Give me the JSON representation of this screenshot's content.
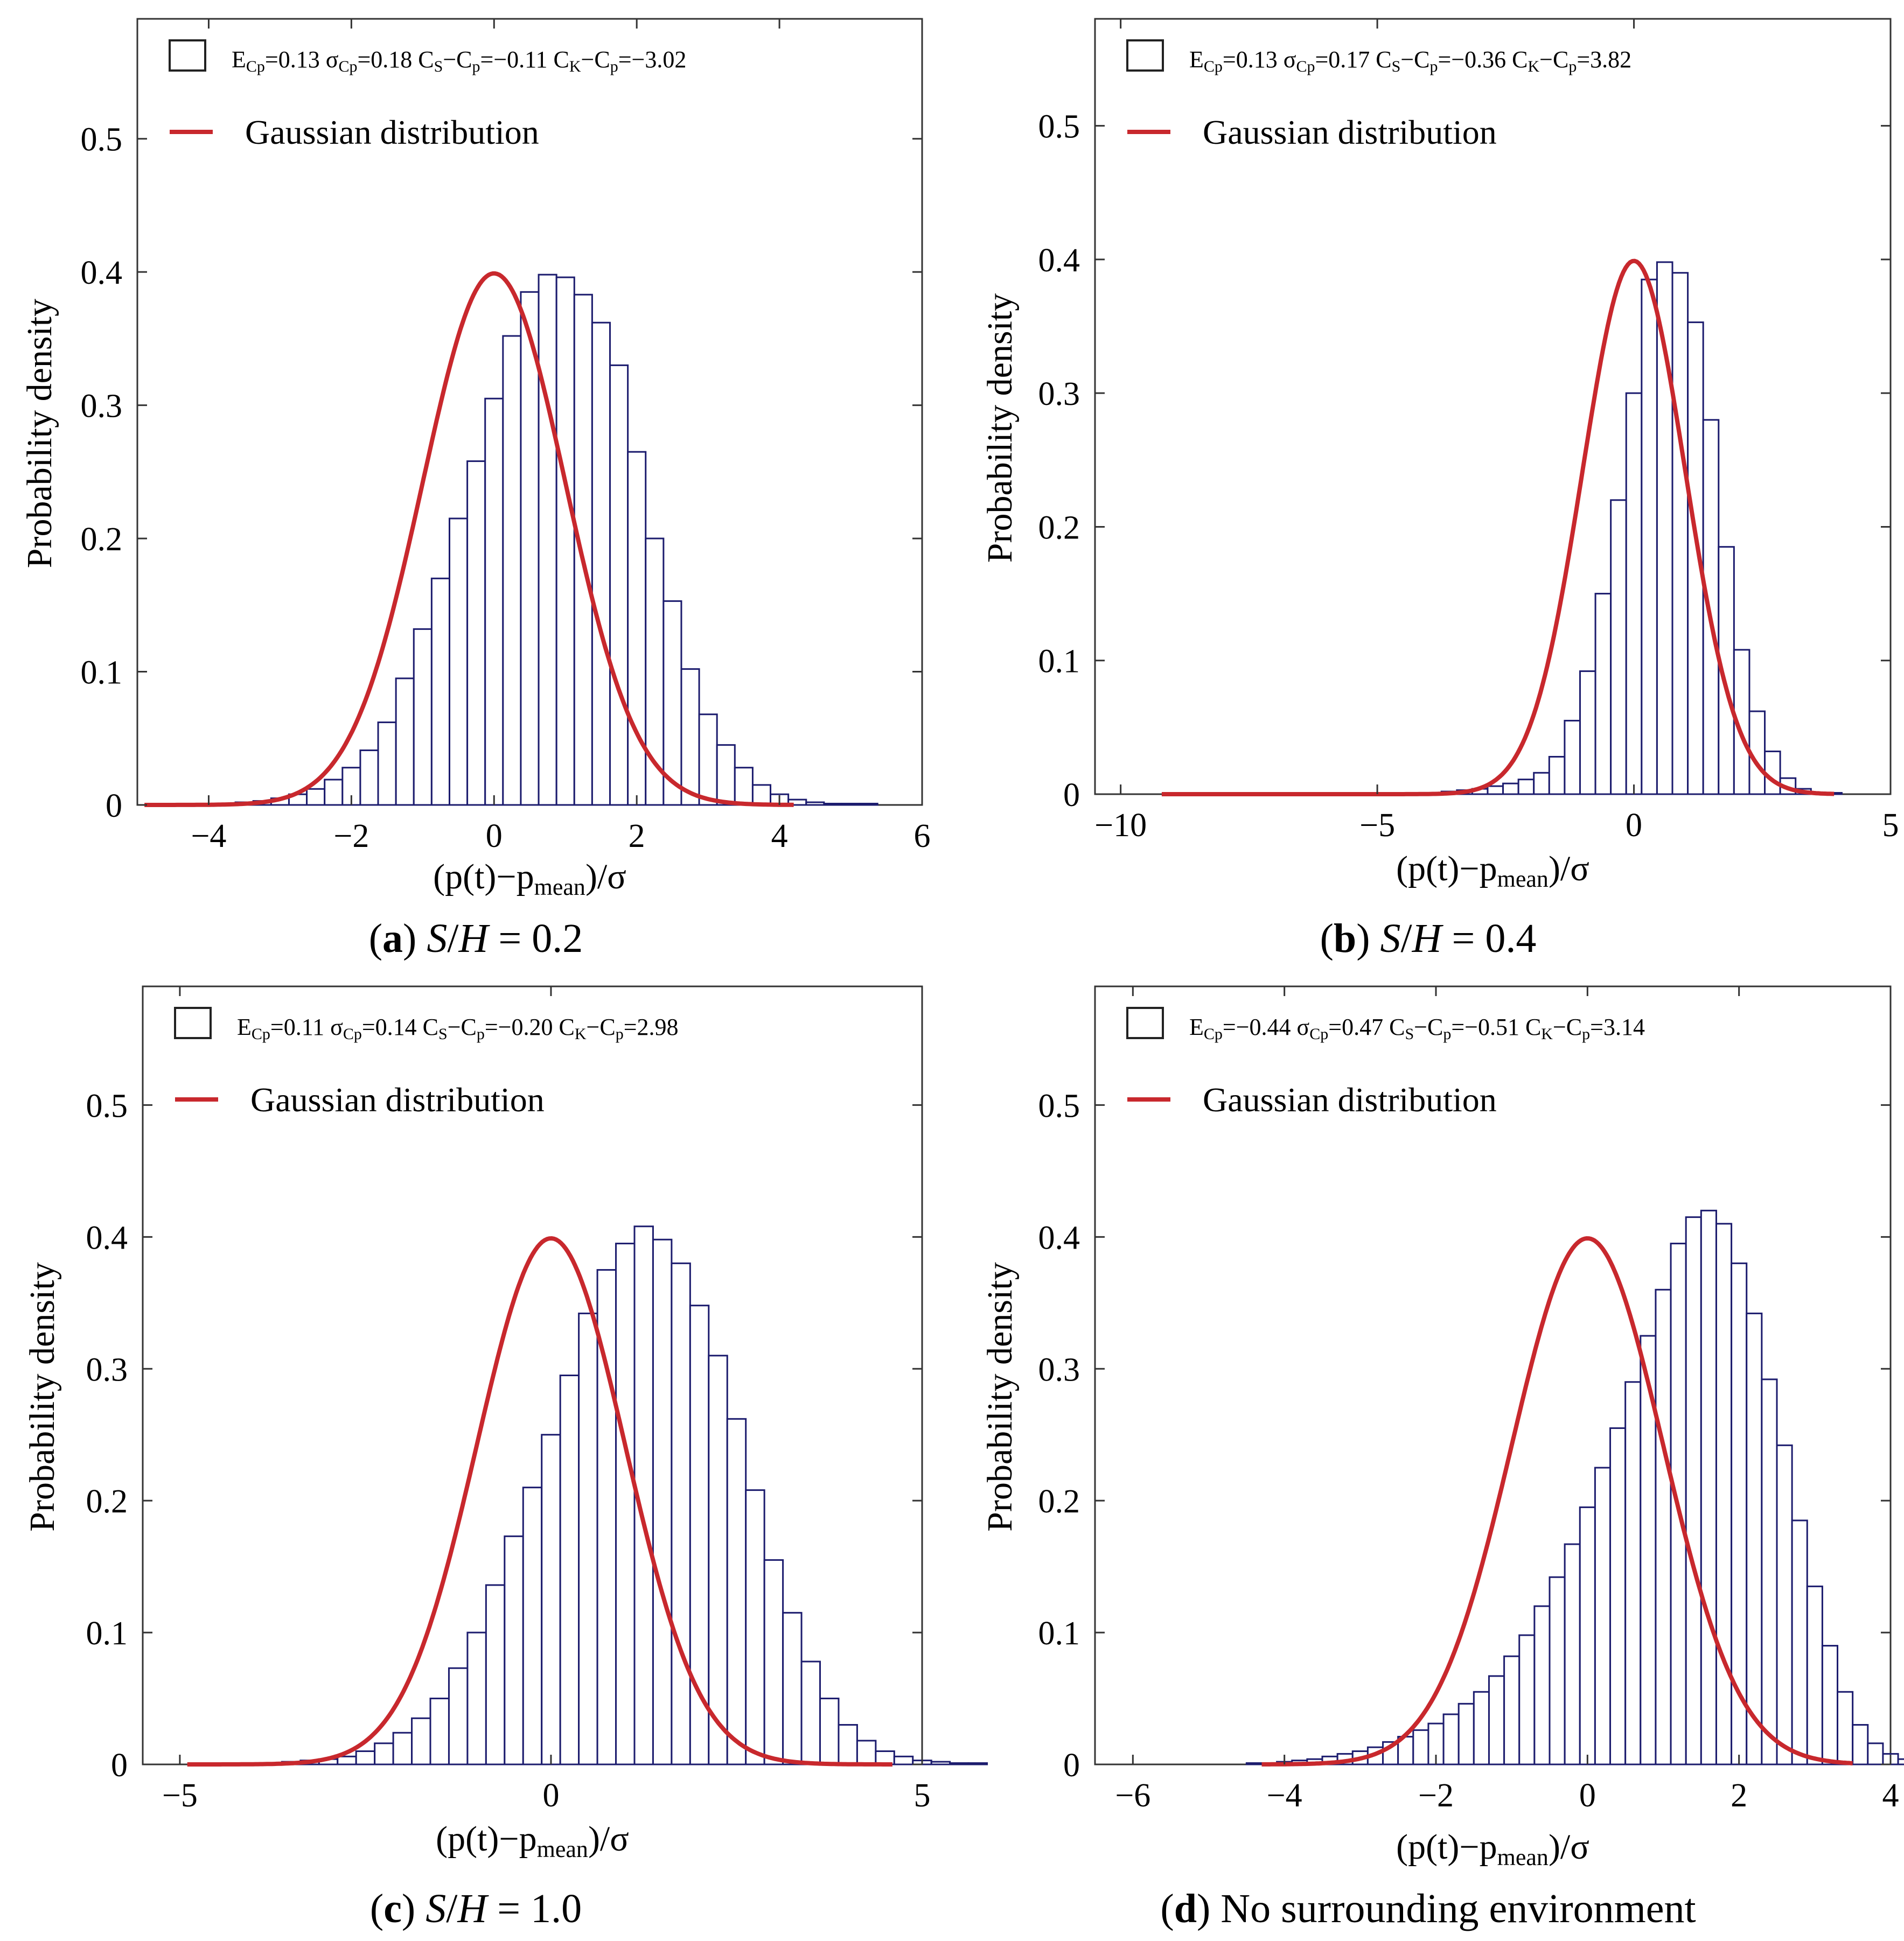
{
  "panels": [
    {
      "caption": {
        "letter": "a",
        "pre": "",
        "italic1": "S",
        "mid": "/",
        "italic2": "H",
        "post": " = 0.2"
      },
      "stats": {
        "e": "0.13",
        "sigma": "0.18",
        "cs": "−0.11",
        "ck": "−3.02"
      },
      "legend_label": "Gaussian distribution",
      "chart_data": {
        "type": "bar",
        "xlabel": "(p(t)−p_mean)/σ",
        "ylabel": "Probability density",
        "xlim": [
          -5,
          6
        ],
        "ylim": [
          0,
          0.59
        ],
        "xticks": [
          -4,
          -2,
          0,
          2,
          4,
          6
        ],
        "yticks": [
          0,
          0.1,
          0.2,
          0.3,
          0.4,
          0.5
        ],
        "bin_width": 0.25,
        "bin_start": -4.875,
        "bin_values": [
          0.001,
          0.001,
          0.001,
          0.001,
          0.001,
          0.002,
          0.003,
          0.005,
          0.008,
          0.012,
          0.019,
          0.028,
          0.041,
          0.062,
          0.095,
          0.132,
          0.17,
          0.215,
          0.258,
          0.305,
          0.352,
          0.385,
          0.398,
          0.396,
          0.383,
          0.362,
          0.33,
          0.265,
          0.2,
          0.153,
          0.102,
          0.068,
          0.045,
          0.028,
          0.015,
          0.008,
          0.004,
          0.002,
          0.001,
          0.001,
          0.001
        ],
        "curve": {
          "name": "Gaussian distribution",
          "mean": 0,
          "sd": 1,
          "x_from": -4.9,
          "x_to": 4.2
        }
      }
    },
    {
      "caption": {
        "letter": "b",
        "pre": "",
        "italic1": "S",
        "mid": "/",
        "italic2": "H",
        "post": " = 0.4"
      },
      "stats": {
        "e": "0.13",
        "sigma": "0.17",
        "cs": "−0.36",
        "ck": "3.82"
      },
      "legend_label": "Gaussian distribution",
      "chart_data": {
        "type": "bar",
        "xlabel": "(p(t)−p_mean)/σ",
        "ylabel": "Probability density",
        "xlim": [
          -10.5,
          5
        ],
        "ylim": [
          0,
          0.58
        ],
        "xticks": [
          -10,
          -5,
          0,
          5
        ],
        "yticks": [
          0,
          0.1,
          0.2,
          0.3,
          0.4,
          0.5
        ],
        "bin_width": 0.3,
        "bin_start": -4.05,
        "bin_values": [
          0.001,
          0.002,
          0.003,
          0.004,
          0.006,
          0.008,
          0.011,
          0.016,
          0.028,
          0.055,
          0.092,
          0.15,
          0.22,
          0.3,
          0.385,
          0.398,
          0.39,
          0.353,
          0.28,
          0.185,
          0.108,
          0.062,
          0.032,
          0.012,
          0.004,
          0.001,
          0.001
        ],
        "curve": {
          "name": "Gaussian distribution",
          "mean": 0,
          "sd": 1,
          "x_from": -9.2,
          "x_to": 3.9
        }
      }
    },
    {
      "caption": {
        "letter": "c",
        "pre": "",
        "italic1": "S",
        "mid": "/",
        "italic2": "H",
        "post": " = 1.0"
      },
      "stats": {
        "e": "0.11",
        "sigma": "0.14",
        "cs": "−0.20",
        "ck": "2.98"
      },
      "legend_label": "Gaussian distribution",
      "chart_data": {
        "type": "bar",
        "xlabel": "(p(t)−p_mean)/σ",
        "ylabel": "Probability density",
        "xlim": [
          -5.5,
          5
        ],
        "ylim": [
          0,
          0.59
        ],
        "xticks": [
          -5,
          0,
          5
        ],
        "yticks": [
          0,
          0.1,
          0.2,
          0.3,
          0.4,
          0.5
        ],
        "bin_width": 0.25,
        "bin_start": -4.875,
        "bin_values": [
          0.001,
          0.001,
          0.001,
          0.001,
          0.001,
          0.002,
          0.003,
          0.004,
          0.006,
          0.01,
          0.016,
          0.024,
          0.035,
          0.05,
          0.073,
          0.1,
          0.136,
          0.173,
          0.21,
          0.25,
          0.295,
          0.342,
          0.375,
          0.395,
          0.408,
          0.398,
          0.38,
          0.348,
          0.31,
          0.262,
          0.208,
          0.155,
          0.115,
          0.078,
          0.05,
          0.03,
          0.018,
          0.01,
          0.006,
          0.003,
          0.002,
          0.001,
          0.001
        ],
        "curve": {
          "name": "Gaussian distribution",
          "mean": 0,
          "sd": 1,
          "x_from": -4.9,
          "x_to": 4.6
        }
      }
    },
    {
      "caption": {
        "letter": "d",
        "pre": "No surrounding environment",
        "italic1": "",
        "mid": "",
        "italic2": "",
        "post": ""
      },
      "stats": {
        "e": "−0.44",
        "sigma": "0.47",
        "cs": "−0.51",
        "ck": "3.14"
      },
      "legend_label": "Gaussian distribution",
      "chart_data": {
        "type": "bar",
        "xlabel": "(p(t)−p_mean)/σ",
        "ylabel": "Probability density",
        "xlim": [
          -6.5,
          4
        ],
        "ylim": [
          0,
          0.59
        ],
        "xticks": [
          -6,
          -4,
          -2,
          0,
          2,
          4
        ],
        "yticks": [
          0,
          0.1,
          0.2,
          0.3,
          0.4,
          0.5
        ],
        "bin_width": 0.2,
        "bin_start": -4.5,
        "bin_values": [
          0.001,
          0.001,
          0.002,
          0.003,
          0.004,
          0.006,
          0.008,
          0.01,
          0.013,
          0.017,
          0.021,
          0.026,
          0.031,
          0.038,
          0.046,
          0.055,
          0.067,
          0.082,
          0.098,
          0.12,
          0.142,
          0.167,
          0.195,
          0.225,
          0.255,
          0.29,
          0.325,
          0.36,
          0.395,
          0.415,
          0.42,
          0.41,
          0.38,
          0.342,
          0.292,
          0.242,
          0.185,
          0.135,
          0.09,
          0.055,
          0.03,
          0.016,
          0.008,
          0.004,
          0.002,
          0.001
        ],
        "curve": {
          "name": "Gaussian distribution",
          "mean": 0,
          "sd": 1,
          "x_from": -4.3,
          "x_to": 3.5
        }
      }
    }
  ],
  "colors": {
    "bar_stroke": "#1c1c6e",
    "curve": "#c8282d",
    "axis": "#333333"
  }
}
